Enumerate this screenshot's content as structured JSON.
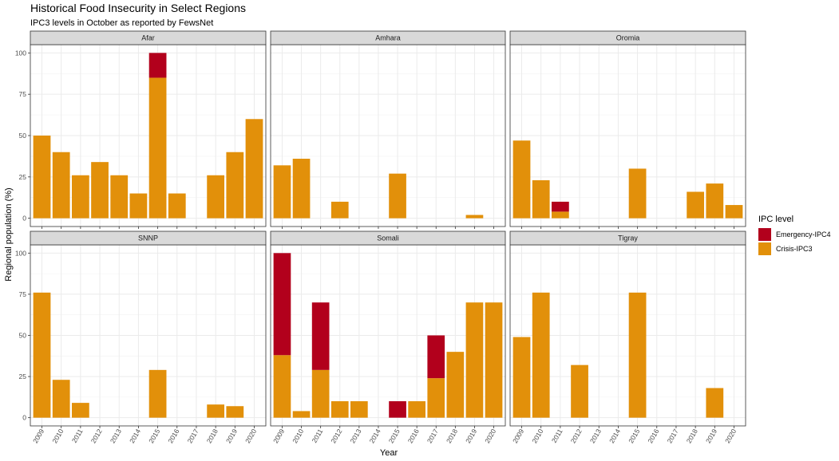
{
  "chart_data": {
    "type": "bar",
    "stacked": true,
    "title": "Historical Food Insecurity in Select Regions",
    "subtitle": "IPC3 levels in October as reported by FewsNet",
    "xlabel": "Year",
    "ylabel": "Regional population (%)",
    "ylim": [
      0,
      100
    ],
    "yticks": [
      "0",
      "25",
      "50",
      "75",
      "100"
    ],
    "categories": [
      "2009",
      "2010",
      "2011",
      "2012",
      "2013",
      "2014",
      "2015",
      "2016",
      "2017",
      "2018",
      "2019",
      "2020"
    ],
    "legend": {
      "title": "IPC level",
      "placement": "right",
      "entries": [
        {
          "name": "Emergency-IPC4",
          "color": "#b2001c"
        },
        {
          "name": "Crisis-IPC3",
          "color": "#e2900a"
        }
      ]
    },
    "colors": {
      "crisis": "#e2900a",
      "emergency": "#b2001c",
      "panel_bg": "#ffffff",
      "strip_bg": "#d9d9d9",
      "grid": "#ebebeb"
    },
    "panels": [
      {
        "region": "Afar",
        "series": [
          {
            "name": "Crisis-IPC3",
            "values": [
              50,
              40,
              26,
              34,
              26,
              15,
              85,
              15,
              0,
              26,
              40,
              60
            ]
          },
          {
            "name": "Emergency-IPC4",
            "values": [
              0,
              0,
              0,
              0,
              0,
              0,
              15,
              0,
              0,
              0,
              0,
              0
            ]
          }
        ]
      },
      {
        "region": "Amhara",
        "series": [
          {
            "name": "Crisis-IPC3",
            "values": [
              32,
              36,
              0,
              10,
              0,
              0,
              27,
              0,
              0,
              0,
              2,
              0
            ]
          },
          {
            "name": "Emergency-IPC4",
            "values": [
              0,
              0,
              0,
              0,
              0,
              0,
              0,
              0,
              0,
              0,
              0,
              0
            ]
          }
        ]
      },
      {
        "region": "Oromia",
        "series": [
          {
            "name": "Crisis-IPC3",
            "values": [
              47,
              23,
              4,
              0,
              0,
              0,
              30,
              0,
              0,
              16,
              21,
              8
            ]
          },
          {
            "name": "Emergency-IPC4",
            "values": [
              0,
              0,
              6,
              0,
              0,
              0,
              0,
              0,
              0,
              0,
              0,
              0
            ]
          }
        ]
      },
      {
        "region": "SNNP",
        "series": [
          {
            "name": "Crisis-IPC3",
            "values": [
              76,
              23,
              9,
              0,
              0,
              0,
              29,
              0,
              0,
              8,
              7,
              0
            ]
          },
          {
            "name": "Emergency-IPC4",
            "values": [
              0,
              0,
              0,
              0,
              0,
              0,
              0,
              0,
              0,
              0,
              0,
              0
            ]
          }
        ]
      },
      {
        "region": "Somali",
        "series": [
          {
            "name": "Crisis-IPC3",
            "values": [
              38,
              4,
              29,
              10,
              10,
              0,
              0,
              10,
              24,
              40,
              70,
              70
            ]
          },
          {
            "name": "Emergency-IPC4",
            "values": [
              62,
              0,
              41,
              0,
              0,
              0,
              10,
              0,
              26,
              0,
              0,
              0
            ]
          }
        ]
      },
      {
        "region": "Tigray",
        "series": [
          {
            "name": "Crisis-IPC3",
            "values": [
              49,
              76,
              0,
              32,
              0,
              0,
              76,
              0,
              0,
              0,
              18,
              0
            ]
          },
          {
            "name": "Emergency-IPC4",
            "values": [
              0,
              0,
              0,
              0,
              0,
              0,
              0,
              0,
              0,
              0,
              0,
              0
            ]
          }
        ]
      }
    ]
  }
}
